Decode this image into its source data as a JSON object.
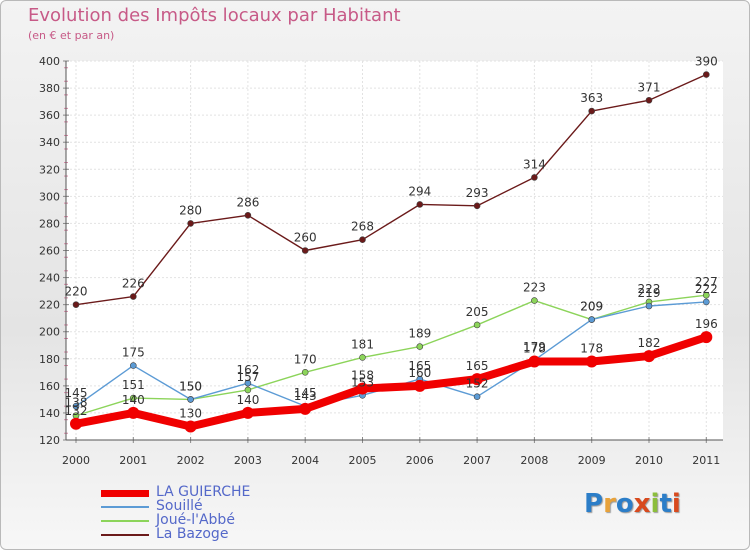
{
  "title": "Evolution des Impôts locaux par Habitant",
  "subtitle": "(en € et par an)",
  "logo": {
    "text": "Proxiti",
    "colors": [
      "#2c7ec8",
      "#e8a23a",
      "#2c7ec8",
      "#d84a1e",
      "#8cbe3c",
      "#2c7ec8",
      "#d84a1e"
    ]
  },
  "chart_data": {
    "type": "line",
    "title": "Evolution des Impôts locaux par Habitant",
    "subtitle": "(en € et par an)",
    "x": [
      "2000",
      "2001",
      "2002",
      "2003",
      "2004",
      "2005",
      "2006",
      "2007",
      "2008",
      "2009",
      "2010",
      "2011"
    ],
    "ylim": [
      120,
      400
    ],
    "yticks": [
      "120",
      "140",
      "160",
      "180",
      "200",
      "220",
      "240",
      "260",
      "280",
      "300",
      "320",
      "340",
      "360",
      "380",
      "400"
    ],
    "grid": true,
    "series": [
      {
        "name": "LA GUIERCHE",
        "color": "#f00000",
        "values": [
          132,
          140,
          130,
          140,
          143,
          158,
          160,
          165,
          178,
          178,
          182,
          196
        ],
        "labels": [
          "132",
          "140",
          "130",
          "140",
          "143",
          "158",
          "160",
          "165",
          "178",
          "178",
          "182",
          "196"
        ]
      },
      {
        "name": "Souillé",
        "color": "#5c9bd5",
        "values": [
          145,
          175,
          150,
          162,
          145,
          153,
          165,
          152,
          179,
          209,
          219,
          222
        ],
        "labels": [
          "145",
          "175",
          "150",
          "162",
          "145",
          "153",
          "165",
          "152",
          "179",
          "209",
          "219",
          "222"
        ]
      },
      {
        "name": "Joué-l'Abbé",
        "color": "#8cd45a",
        "values": [
          138,
          151,
          150,
          157,
          170,
          181,
          189,
          205,
          223,
          209,
          222,
          227
        ],
        "labels": [
          "138",
          "151",
          "150",
          "157",
          "170",
          "181",
          "189",
          "205",
          "223",
          "209",
          "222",
          "227"
        ]
      },
      {
        "name": "La Bazoge",
        "color": "#6b1a1a",
        "values": [
          220,
          226,
          280,
          286,
          260,
          268,
          294,
          293,
          314,
          363,
          371,
          390
        ],
        "labels": [
          "220",
          "226",
          "280",
          "286",
          "260",
          "268",
          "294",
          "293",
          "314",
          "363",
          "371",
          "390"
        ]
      }
    ],
    "legend": "bottom-left"
  }
}
